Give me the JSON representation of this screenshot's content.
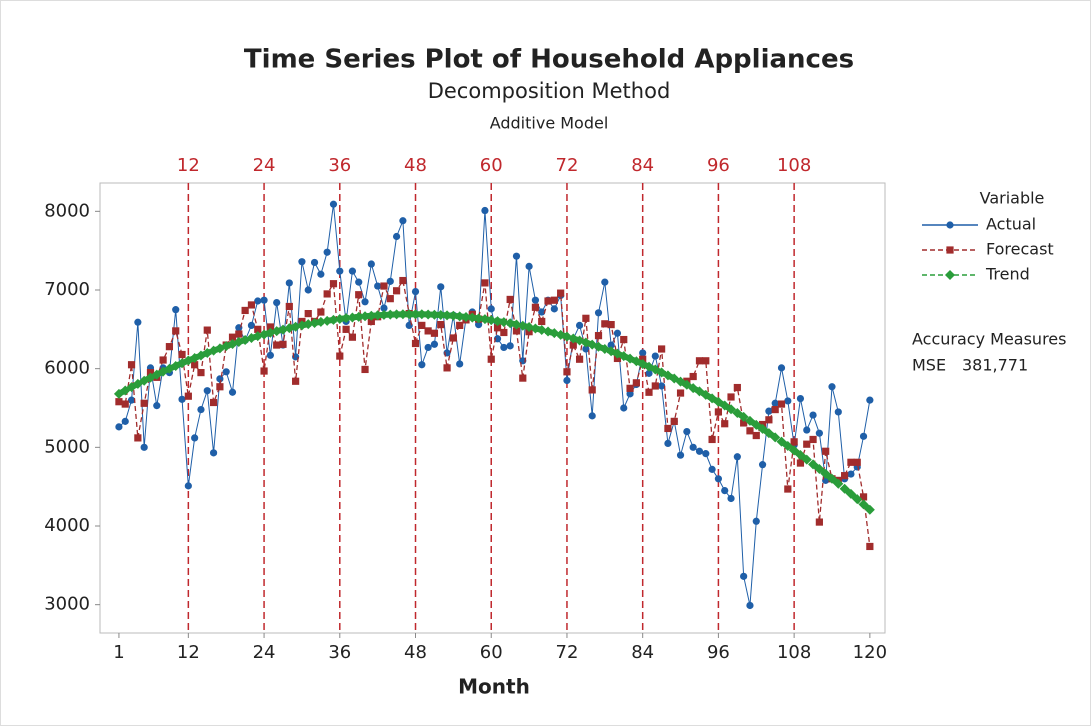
{
  "chart_data": {
    "type": "line",
    "title": "Time Series Plot of Household Appliances",
    "subtitle": "Decomposition Method",
    "model": "Additive Model",
    "x_label": "Month",
    "legend_title": "Variable",
    "legend_position": "right",
    "x": [
      1,
      2,
      3,
      4,
      5,
      6,
      7,
      8,
      9,
      10,
      11,
      12,
      13,
      14,
      15,
      16,
      17,
      18,
      19,
      20,
      21,
      22,
      23,
      24,
      25,
      26,
      27,
      28,
      29,
      30,
      31,
      32,
      33,
      34,
      35,
      36,
      37,
      38,
      39,
      40,
      41,
      42,
      43,
      44,
      45,
      46,
      47,
      48,
      49,
      50,
      51,
      52,
      53,
      54,
      55,
      56,
      57,
      58,
      59,
      60,
      61,
      62,
      63,
      64,
      65,
      66,
      67,
      68,
      69,
      70,
      71,
      72,
      73,
      74,
      75,
      76,
      77,
      78,
      79,
      80,
      81,
      82,
      83,
      84,
      85,
      86,
      87,
      88,
      89,
      90,
      91,
      92,
      93,
      94,
      95,
      96,
      97,
      98,
      99,
      100,
      101,
      102,
      103,
      104,
      105,
      106,
      107,
      108,
      109,
      110,
      111,
      112,
      113,
      114,
      115,
      116,
      117,
      118,
      119,
      120
    ],
    "series": [
      {
        "name": "Actual",
        "color": "#1f5fa8",
        "marker": "circle",
        "dashed": false,
        "width": 1,
        "values": [
          5260,
          5330,
          5600,
          6590,
          5000,
          6010,
          5530,
          6010,
          5950,
          6750,
          5610,
          4510,
          5120,
          5480,
          5720,
          4930,
          5870,
          5960,
          5700,
          6520,
          6360,
          6550,
          6860,
          6870,
          6170,
          6840,
          6300,
          7090,
          6150,
          7360,
          7000,
          7350,
          7200,
          7480,
          8090,
          7240,
          6600,
          7240,
          7100,
          6850,
          7330,
          7050,
          6770,
          7110,
          7680,
          7880,
          6550,
          6980,
          6050,
          6270,
          6310,
          7040,
          6200,
          6680,
          6060,
          6640,
          6720,
          6560,
          8010,
          6760,
          6380,
          6270,
          6290,
          7430,
          6100,
          7300,
          6870,
          6720,
          6870,
          6760,
          6930,
          5850,
          6380,
          6550,
          6250,
          5400,
          6710,
          7100,
          6300,
          6450,
          5500,
          5680,
          5800,
          6200,
          5940,
          6160,
          5780,
          5050,
          5330,
          4900,
          5200,
          5000,
          4950,
          4920,
          4720,
          4600,
          4450,
          4350,
          4880,
          3360,
          2990,
          4060,
          4780,
          5460,
          5560,
          6010,
          5590,
          5030,
          5620,
          5220,
          5410,
          5180,
          4580,
          5770,
          5450,
          4600,
          4660,
          4750,
          5140,
          5600
        ]
      },
      {
        "name": "Forecast",
        "color": "#a12c2c",
        "marker": "square",
        "dashed": true,
        "width": 1.3,
        "values": [
          5580,
          5550,
          6050,
          5120,
          5560,
          5950,
          5890,
          6110,
          6280,
          6480,
          6180,
          5650,
          6050,
          5950,
          6490,
          5570,
          5770,
          6300,
          6400,
          6440,
          6740,
          6810,
          6500,
          5970,
          6530,
          6300,
          6310,
          6790,
          5840,
          6600,
          6700,
          6600,
          6720,
          6950,
          7080,
          6160,
          6500,
          6400,
          6940,
          5990,
          6600,
          6660,
          7050,
          6890,
          6990,
          7120,
          6700,
          6320,
          6550,
          6480,
          6450,
          6560,
          6010,
          6390,
          6550,
          6620,
          6690,
          6630,
          7090,
          6120,
          6520,
          6460,
          6880,
          6480,
          5880,
          6470,
          6780,
          6600,
          6860,
          6870,
          6960,
          5960,
          6300,
          6120,
          6640,
          5730,
          6420,
          6570,
          6560,
          6130,
          6370,
          5750,
          5820,
          6120,
          5700,
          5780,
          6250,
          5240,
          5330,
          5690,
          5840,
          5900,
          6100,
          6100,
          5100,
          5450,
          5300,
          5640,
          5760,
          5310,
          5210,
          5150,
          5290,
          5350,
          5480,
          5550,
          4470,
          5070,
          4800,
          5040,
          5100,
          4050,
          4950,
          4600,
          4580,
          4640,
          4810,
          4810,
          4370,
          3740
        ]
      },
      {
        "name": "Trend",
        "color": "#2a9d3a",
        "marker": "diamond",
        "dashed": true,
        "width": 6,
        "values": [
          5680,
          5723,
          5765,
          5806,
          5847,
          5886,
          5924,
          5962,
          5999,
          6034,
          6069,
          6103,
          6136,
          6168,
          6199,
          6229,
          6258,
          6286,
          6313,
          6339,
          6365,
          6389,
          6413,
          6435,
          6457,
          6477,
          6497,
          6516,
          6533,
          6550,
          6566,
          6581,
          6595,
          6608,
          6620,
          6631,
          6642,
          6651,
          6659,
          6667,
          6673,
          6679,
          6683,
          6687,
          6690,
          6691,
          6692,
          6692,
          6691,
          6689,
          6686,
          6682,
          6677,
          6672,
          6665,
          6657,
          6649,
          6639,
          6629,
          6617,
          6605,
          6592,
          6578,
          6562,
          6546,
          6529,
          6511,
          6492,
          6472,
          6451,
          6429,
          6407,
          6383,
          6358,
          6333,
          6306,
          6279,
          6250,
          6221,
          6191,
          6159,
          6127,
          6094,
          6060,
          6025,
          5989,
          5952,
          5914,
          5875,
          5836,
          5795,
          5753,
          5711,
          5667,
          5623,
          5578,
          5531,
          5484,
          5436,
          5387,
          5337,
          5286,
          5234,
          5181,
          5127,
          5072,
          5017,
          4960,
          4902,
          4844,
          4784,
          4724,
          4663,
          4600,
          4537,
          4473,
          4408,
          4342,
          4275,
          4207
        ]
      }
    ],
    "xlim": [
      -2,
      122.4
    ],
    "ylim": [
      2640,
      8360
    ],
    "xticks": [
      1,
      12,
      24,
      36,
      48,
      60,
      72,
      84,
      96,
      108,
      120
    ],
    "yticks": [
      3000,
      4000,
      5000,
      6000,
      7000,
      8000
    ],
    "reference_lines": [
      12,
      24,
      36,
      48,
      60,
      72,
      84,
      96,
      108
    ],
    "reference_color": "#c0282d",
    "accuracy": {
      "title": "Accuracy Measures",
      "measures": [
        {
          "name": "MSE",
          "value": "381,771"
        }
      ]
    }
  }
}
